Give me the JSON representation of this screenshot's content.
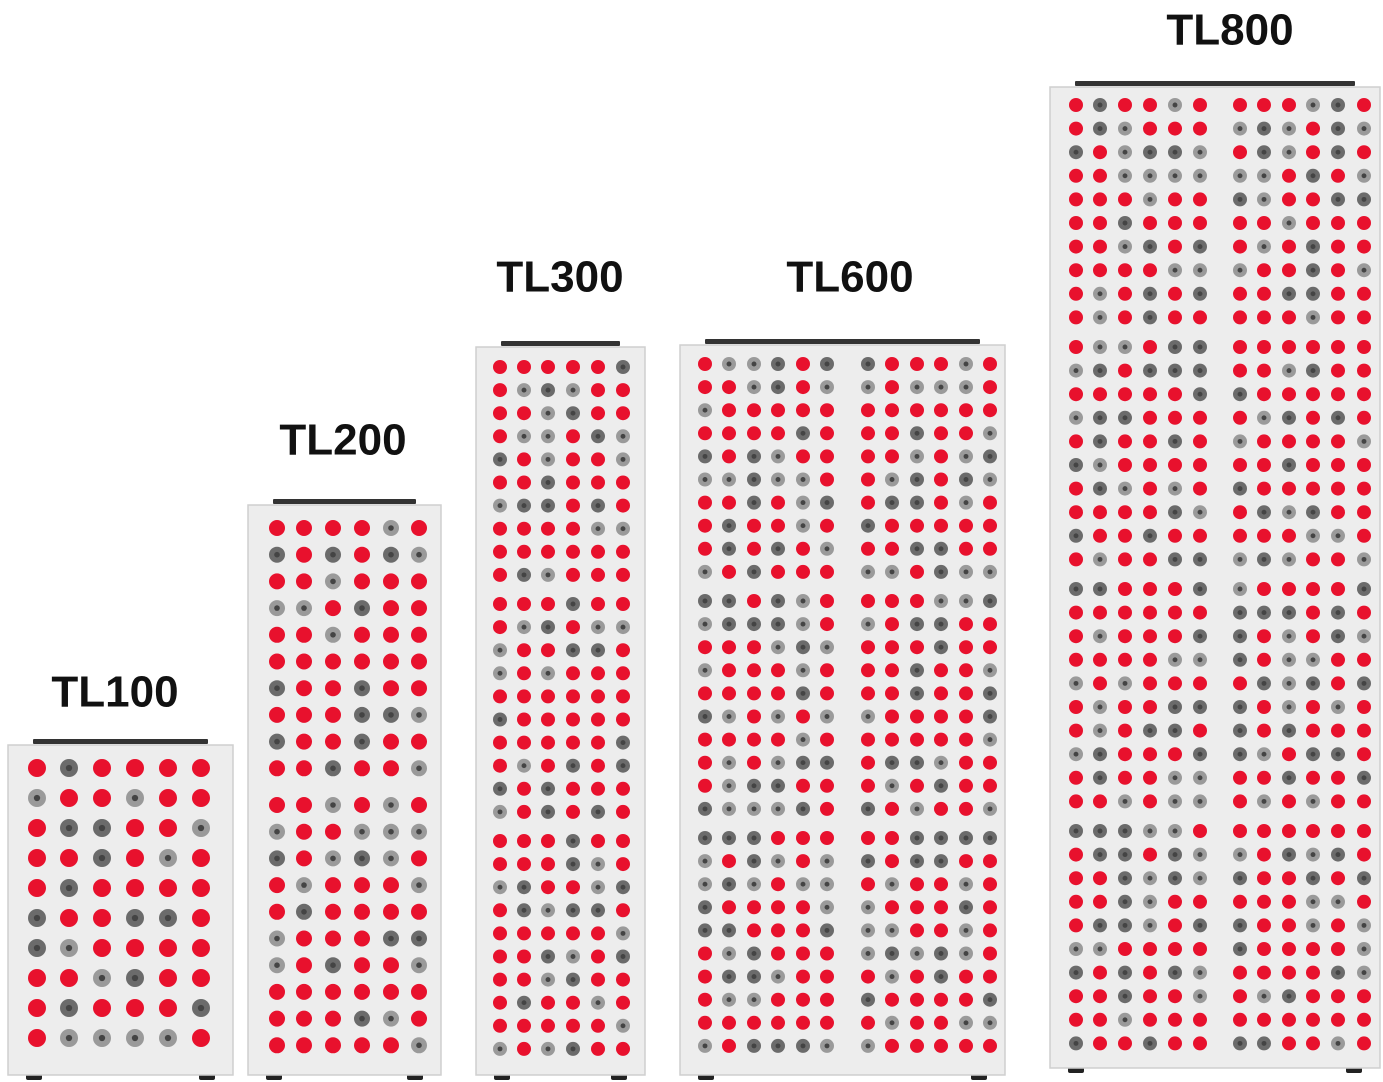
{
  "panels": [
    {
      "label": "TL100"
    },
    {
      "label": "TL200"
    },
    {
      "label": "TL300"
    },
    {
      "label": "TL600"
    },
    {
      "label": "TL800"
    }
  ]
}
